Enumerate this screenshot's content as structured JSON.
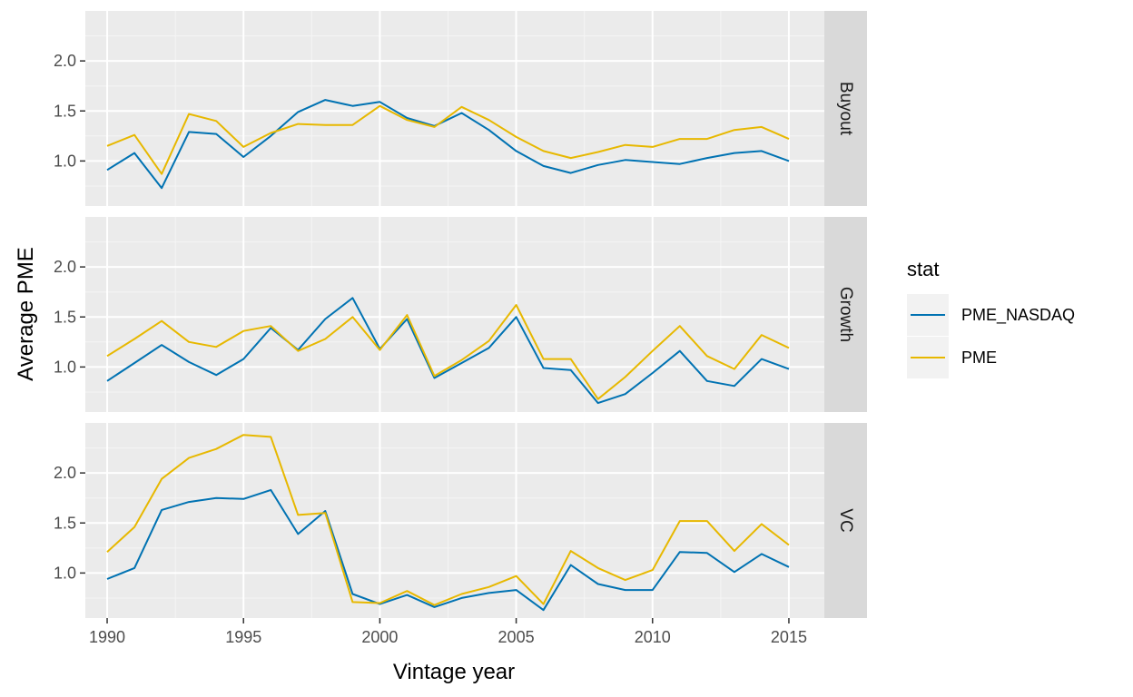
{
  "chart_data": {
    "type": "line",
    "facet_rows": [
      "Buyout",
      "Growth",
      "VC"
    ],
    "xlabel": "Vintage year",
    "ylabel": "Average PME",
    "x_ticks": [
      1990,
      1995,
      2000,
      2005,
      2010,
      2015
    ],
    "y_ticks": [
      1.0,
      1.5,
      2.0
    ],
    "y_tick_labels": [
      "1.0",
      "1.5",
      "2.0"
    ],
    "xlim": [
      1989.2,
      2016.3
    ],
    "ylim": [
      0.55,
      2.5
    ],
    "grid": true,
    "legend": {
      "title": "stat",
      "position": "right",
      "entries": [
        {
          "name": "PME_NASDAQ",
          "color": "#0072B2"
        },
        {
          "name": "PME",
          "color": "#E7B800"
        }
      ]
    },
    "x": [
      1990,
      1991,
      1992,
      1993,
      1994,
      1995,
      1996,
      1997,
      1998,
      1999,
      2000,
      2001,
      2002,
      2003,
      2004,
      2005,
      2006,
      2007,
      2008,
      2009,
      2010,
      2011,
      2012,
      2013,
      2014,
      2015
    ],
    "facets": [
      {
        "name": "Buyout",
        "series": [
          {
            "name": "PME_NASDAQ",
            "values": [
              0.91,
              1.08,
              0.73,
              1.29,
              1.27,
              1.04,
              1.25,
              1.49,
              1.61,
              1.55,
              1.59,
              1.43,
              1.35,
              1.48,
              1.31,
              1.1,
              0.95,
              0.88,
              0.96,
              1.01,
              0.99,
              0.97,
              1.03,
              1.08,
              1.1,
              1.0
            ]
          },
          {
            "name": "PME",
            "values": [
              1.15,
              1.26,
              0.87,
              1.47,
              1.4,
              1.14,
              1.28,
              1.37,
              1.36,
              1.36,
              1.55,
              1.41,
              1.34,
              1.54,
              1.41,
              1.24,
              1.1,
              1.03,
              1.09,
              1.16,
              1.14,
              1.22,
              1.22,
              1.31,
              1.34,
              1.22
            ]
          }
        ]
      },
      {
        "name": "Growth",
        "series": [
          {
            "name": "PME_NASDAQ",
            "values": [
              0.86,
              1.04,
              1.22,
              1.05,
              0.92,
              1.08,
              1.39,
              1.17,
              1.48,
              1.69,
              1.18,
              1.48,
              0.89,
              1.04,
              1.19,
              1.5,
              0.99,
              0.97,
              0.64,
              0.73,
              0.94,
              1.16,
              0.86,
              0.81,
              1.08,
              0.98
            ]
          },
          {
            "name": "PME",
            "values": [
              1.11,
              1.28,
              1.46,
              1.25,
              1.2,
              1.36,
              1.41,
              1.16,
              1.28,
              1.5,
              1.17,
              1.52,
              0.91,
              1.07,
              1.26,
              1.62,
              1.08,
              1.08,
              0.68,
              0.9,
              1.16,
              1.41,
              1.11,
              0.98,
              1.32,
              1.19
            ]
          }
        ]
      },
      {
        "name": "VC",
        "series": [
          {
            "name": "PME_NASDAQ",
            "values": [
              0.94,
              1.05,
              1.63,
              1.71,
              1.75,
              1.74,
              1.83,
              1.39,
              1.62,
              0.79,
              0.69,
              0.78,
              0.66,
              0.75,
              0.8,
              0.83,
              0.63,
              1.08,
              0.89,
              0.83,
              0.83,
              1.21,
              1.2,
              1.01,
              1.19,
              1.06
            ]
          },
          {
            "name": "PME",
            "values": [
              1.21,
              1.46,
              1.94,
              2.15,
              2.24,
              2.38,
              2.36,
              1.58,
              1.6,
              0.71,
              0.7,
              0.82,
              0.68,
              0.79,
              0.86,
              0.97,
              0.69,
              1.22,
              1.05,
              0.93,
              1.03,
              1.52,
              1.52,
              1.22,
              1.49,
              1.28
            ]
          }
        ]
      }
    ]
  }
}
